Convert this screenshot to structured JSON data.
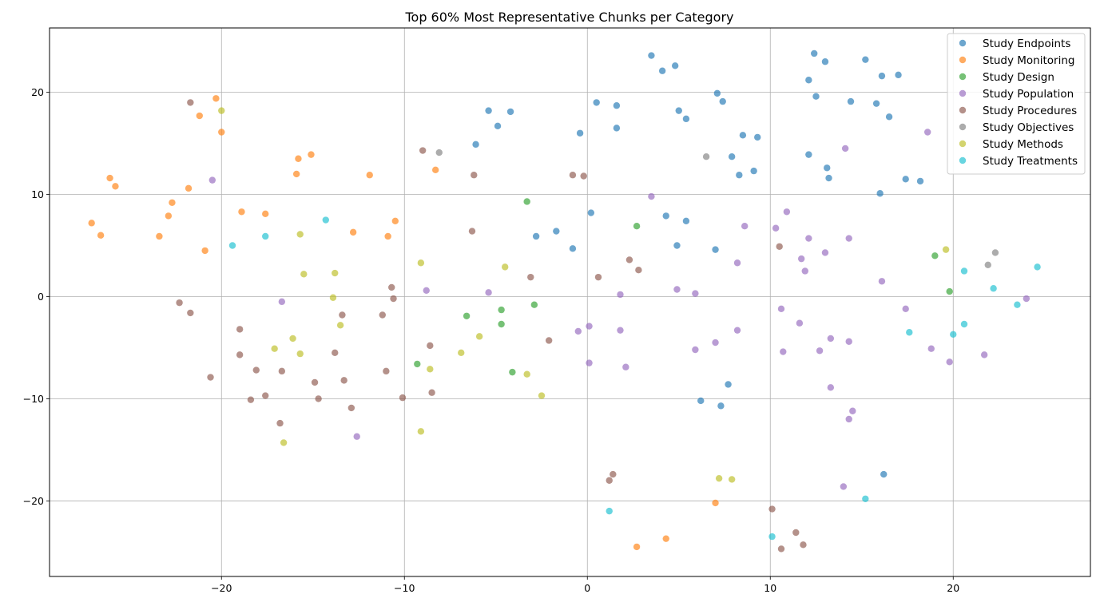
{
  "chart_data": {
    "type": "scatter",
    "title": "Top 60% Most Representative Chunks per Category",
    "xlabel": "",
    "ylabel": "",
    "xlim": [
      -29.4,
      27.5
    ],
    "ylim": [
      -27.4,
      26.3
    ],
    "xticks": [
      -20,
      -10,
      0,
      10,
      20
    ],
    "yticks": [
      -20,
      -10,
      0,
      10,
      20
    ],
    "xtick_labels": [
      "−20",
      "−10",
      "0",
      "10",
      "20"
    ],
    "ytick_labels": [
      "−20",
      "−10",
      "0",
      "10",
      "20"
    ],
    "grid": true,
    "legend_position": "top-right",
    "series": [
      {
        "name": "Study Endpoints",
        "color": "#1f77b4",
        "points": [
          [
            3.5,
            23.6
          ],
          [
            4.1,
            22.1
          ],
          [
            4.8,
            22.6
          ],
          [
            12.4,
            23.8
          ],
          [
            13.0,
            23.0
          ],
          [
            15.2,
            23.2
          ],
          [
            12.1,
            21.2
          ],
          [
            16.1,
            21.6
          ],
          [
            17.0,
            21.7
          ],
          [
            12.5,
            19.6
          ],
          [
            14.4,
            19.1
          ],
          [
            15.8,
            18.9
          ],
          [
            16.5,
            17.6
          ],
          [
            7.1,
            19.9
          ],
          [
            7.4,
            19.1
          ],
          [
            0.5,
            19.0
          ],
          [
            1.6,
            18.7
          ],
          [
            -5.4,
            18.2
          ],
          [
            -4.2,
            18.1
          ],
          [
            -4.9,
            16.7
          ],
          [
            5.0,
            18.2
          ],
          [
            5.4,
            17.4
          ],
          [
            -0.4,
            16.0
          ],
          [
            1.6,
            16.5
          ],
          [
            -6.1,
            14.9
          ],
          [
            8.5,
            15.8
          ],
          [
            9.3,
            15.6
          ],
          [
            7.9,
            13.7
          ],
          [
            12.1,
            13.9
          ],
          [
            13.1,
            12.6
          ],
          [
            13.2,
            11.6
          ],
          [
            8.3,
            11.9
          ],
          [
            9.1,
            12.3
          ],
          [
            17.4,
            11.5
          ],
          [
            18.2,
            11.3
          ],
          [
            16.0,
            10.1
          ],
          [
            0.2,
            8.2
          ],
          [
            4.3,
            7.9
          ],
          [
            5.4,
            7.4
          ],
          [
            -1.7,
            6.4
          ],
          [
            -2.8,
            5.9
          ],
          [
            -0.8,
            4.7
          ],
          [
            4.9,
            5.0
          ],
          [
            7.0,
            4.6
          ],
          [
            7.7,
            -8.6
          ],
          [
            6.2,
            -10.2
          ],
          [
            7.3,
            -10.7
          ],
          [
            16.2,
            -17.4
          ]
        ]
      },
      {
        "name": "Study Monitoring",
        "color": "#ff7f0e",
        "points": [
          [
            -20.3,
            19.4
          ],
          [
            -21.2,
            17.7
          ],
          [
            -20.0,
            16.1
          ],
          [
            -15.1,
            13.9
          ],
          [
            -15.8,
            13.5
          ],
          [
            -11.9,
            11.9
          ],
          [
            -15.9,
            12.0
          ],
          [
            -8.3,
            12.4
          ],
          [
            -26.1,
            11.6
          ],
          [
            -25.8,
            10.8
          ],
          [
            -21.8,
            10.6
          ],
          [
            -22.7,
            9.2
          ],
          [
            -22.9,
            7.9
          ],
          [
            -27.1,
            7.2
          ],
          [
            -26.6,
            6.0
          ],
          [
            -23.4,
            5.9
          ],
          [
            -18.9,
            8.3
          ],
          [
            -17.6,
            8.1
          ],
          [
            -10.5,
            7.4
          ],
          [
            -12.8,
            6.3
          ],
          [
            -10.9,
            5.9
          ],
          [
            -20.9,
            4.5
          ],
          [
            7.0,
            -20.2
          ],
          [
            2.7,
            -24.5
          ],
          [
            4.3,
            -23.7
          ]
        ]
      },
      {
        "name": "Study Design",
        "color": "#2ca02c",
        "points": [
          [
            -3.3,
            9.3
          ],
          [
            2.7,
            6.9
          ],
          [
            -6.6,
            -1.9
          ],
          [
            -4.7,
            -1.3
          ],
          [
            -2.9,
            -0.8
          ],
          [
            -4.7,
            -2.7
          ],
          [
            -9.3,
            -6.6
          ],
          [
            -4.1,
            -7.4
          ],
          [
            19.0,
            4.0
          ],
          [
            19.8,
            0.5
          ]
        ]
      },
      {
        "name": "Study Population",
        "color": "#9467bd",
        "points": [
          [
            -20.5,
            11.4
          ],
          [
            18.6,
            16.1
          ],
          [
            14.1,
            14.5
          ],
          [
            3.5,
            9.8
          ],
          [
            10.9,
            8.3
          ],
          [
            8.6,
            6.9
          ],
          [
            10.3,
            6.7
          ],
          [
            12.1,
            5.7
          ],
          [
            14.3,
            5.7
          ],
          [
            11.7,
            3.7
          ],
          [
            13.0,
            4.3
          ],
          [
            8.2,
            3.3
          ],
          [
            11.9,
            2.5
          ],
          [
            16.1,
            1.5
          ],
          [
            -5.4,
            0.4
          ],
          [
            -8.8,
            0.6
          ],
          [
            4.9,
            0.7
          ],
          [
            5.9,
            0.3
          ],
          [
            1.8,
            0.2
          ],
          [
            -16.7,
            -0.5
          ],
          [
            10.6,
            -1.2
          ],
          [
            17.4,
            -1.2
          ],
          [
            11.6,
            -2.6
          ],
          [
            -0.5,
            -3.4
          ],
          [
            0.1,
            -2.9
          ],
          [
            1.8,
            -3.3
          ],
          [
            8.2,
            -3.3
          ],
          [
            13.3,
            -4.1
          ],
          [
            14.3,
            -4.4
          ],
          [
            7.0,
            -4.5
          ],
          [
            5.9,
            -5.2
          ],
          [
            12.7,
            -5.3
          ],
          [
            10.7,
            -5.4
          ],
          [
            18.8,
            -5.1
          ],
          [
            21.7,
            -5.7
          ],
          [
            0.1,
            -6.5
          ],
          [
            2.1,
            -6.9
          ],
          [
            19.8,
            -6.4
          ],
          [
            13.3,
            -8.9
          ],
          [
            14.5,
            -11.2
          ],
          [
            14.3,
            -12.0
          ],
          [
            -12.6,
            -13.7
          ],
          [
            24.0,
            -0.2
          ],
          [
            14.0,
            -18.6
          ]
        ]
      },
      {
        "name": "Study Procedures",
        "color": "#8c564b",
        "points": [
          [
            -21.7,
            19.0
          ],
          [
            -9.0,
            14.3
          ],
          [
            -6.2,
            11.9
          ],
          [
            -0.8,
            11.9
          ],
          [
            -0.2,
            11.8
          ],
          [
            -6.3,
            6.4
          ],
          [
            10.5,
            4.9
          ],
          [
            2.3,
            3.6
          ],
          [
            2.8,
            2.6
          ],
          [
            0.6,
            1.9
          ],
          [
            -3.1,
            1.9
          ],
          [
            -10.7,
            0.9
          ],
          [
            -10.6,
            -0.2
          ],
          [
            -22.3,
            -0.6
          ],
          [
            -21.7,
            -1.6
          ],
          [
            -13.4,
            -1.8
          ],
          [
            -11.2,
            -1.8
          ],
          [
            -19.0,
            -3.2
          ],
          [
            -13.8,
            -5.5
          ],
          [
            -19.0,
            -5.7
          ],
          [
            -8.6,
            -4.8
          ],
          [
            -2.1,
            -4.3
          ],
          [
            -18.1,
            -7.2
          ],
          [
            -16.7,
            -7.3
          ],
          [
            -11.0,
            -7.3
          ],
          [
            -20.6,
            -7.9
          ],
          [
            -13.3,
            -8.2
          ],
          [
            -14.9,
            -8.4
          ],
          [
            -17.6,
            -9.7
          ],
          [
            -18.4,
            -10.1
          ],
          [
            -14.7,
            -10.0
          ],
          [
            -10.1,
            -9.9
          ],
          [
            -8.5,
            -9.4
          ],
          [
            -12.9,
            -10.9
          ],
          [
            -16.8,
            -12.4
          ],
          [
            1.4,
            -17.4
          ],
          [
            1.2,
            -18.0
          ],
          [
            10.1,
            -20.8
          ],
          [
            11.4,
            -23.1
          ],
          [
            11.8,
            -24.3
          ],
          [
            10.6,
            -24.7
          ]
        ]
      },
      {
        "name": "Study Objectives",
        "color": "#7f7f7f",
        "points": [
          [
            -8.1,
            14.1
          ],
          [
            6.5,
            13.7
          ],
          [
            22.3,
            4.3
          ],
          [
            21.9,
            3.1
          ]
        ]
      },
      {
        "name": "Study Methods",
        "color": "#bcbd22",
        "points": [
          [
            -20.0,
            18.2
          ],
          [
            -15.7,
            6.1
          ],
          [
            -15.5,
            2.2
          ],
          [
            -13.8,
            2.3
          ],
          [
            -9.1,
            3.3
          ],
          [
            -4.5,
            2.9
          ],
          [
            -13.9,
            -0.1
          ],
          [
            -13.5,
            -2.8
          ],
          [
            -17.1,
            -5.1
          ],
          [
            -16.1,
            -4.1
          ],
          [
            -15.7,
            -5.6
          ],
          [
            -5.9,
            -3.9
          ],
          [
            -6.9,
            -5.5
          ],
          [
            -8.6,
            -7.1
          ],
          [
            -3.3,
            -7.6
          ],
          [
            -2.5,
            -9.7
          ],
          [
            -9.1,
            -13.2
          ],
          [
            -16.6,
            -14.3
          ],
          [
            7.2,
            -17.8
          ],
          [
            7.9,
            -17.9
          ],
          [
            19.6,
            4.6
          ]
        ]
      },
      {
        "name": "Study Treatments",
        "color": "#17becf",
        "points": [
          [
            -14.3,
            7.5
          ],
          [
            -17.6,
            5.9
          ],
          [
            -19.4,
            5.0
          ],
          [
            20.6,
            2.5
          ],
          [
            24.6,
            2.9
          ],
          [
            22.2,
            0.8
          ],
          [
            23.5,
            -0.8
          ],
          [
            20.6,
            -2.7
          ],
          [
            20.0,
            -3.7
          ],
          [
            17.6,
            -3.5
          ],
          [
            1.2,
            -21.0
          ],
          [
            10.1,
            -23.5
          ],
          [
            15.2,
            -19.8
          ]
        ]
      }
    ]
  }
}
